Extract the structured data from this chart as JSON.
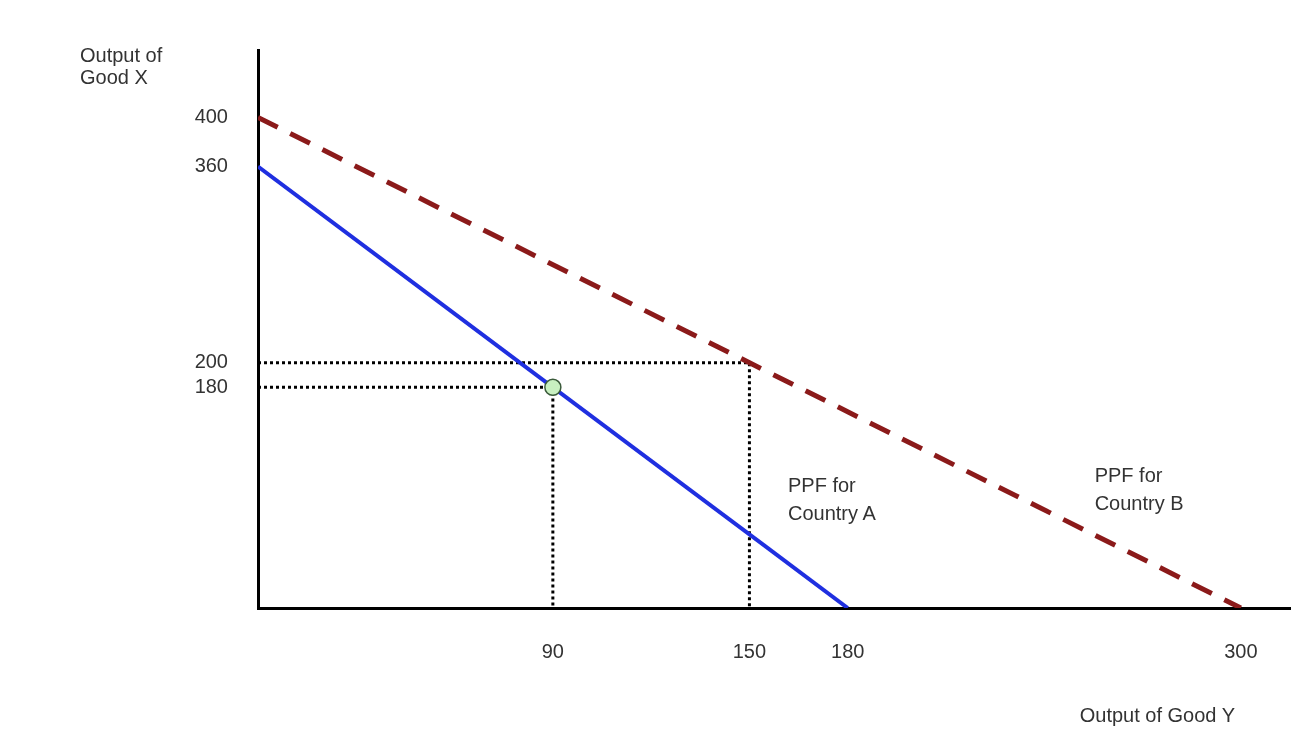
{
  "chart_data": {
    "type": "line",
    "xlabel": "Output of Good Y",
    "ylabel": "Output of Good X",
    "xlim": [
      0,
      315
    ],
    "ylim": [
      0,
      455
    ],
    "xticks": [
      90,
      150,
      180,
      300
    ],
    "yticks": [
      180,
      200,
      360,
      400
    ],
    "grid": false,
    "legend": false,
    "series": [
      {
        "name": "PPF for Country A",
        "color": "#1f2fe0",
        "line_style": "solid",
        "marker": "none",
        "x": [
          0,
          180
        ],
        "values": [
          360,
          0
        ]
      },
      {
        "name": "PPF for Country B",
        "color": "#8b1a1a",
        "line_style": "dashed",
        "marker": "none",
        "x": [
          0,
          300
        ],
        "values": [
          400,
          0
        ]
      },
      {
        "color": "#000000",
        "line_style": "dotted",
        "marker": "none",
        "x": [
          0,
          90,
          90
        ],
        "values": [
          180,
          180,
          0
        ]
      },
      {
        "color": "#000000",
        "line_style": "dotted",
        "marker": "none",
        "x": [
          0,
          150,
          150
        ],
        "values": [
          200,
          200,
          0
        ]
      },
      {
        "type": "scatter",
        "color": "#c8f0c0",
        "marker": "circle",
        "x": [
          90
        ],
        "values": [
          180
        ]
      }
    ]
  }
}
